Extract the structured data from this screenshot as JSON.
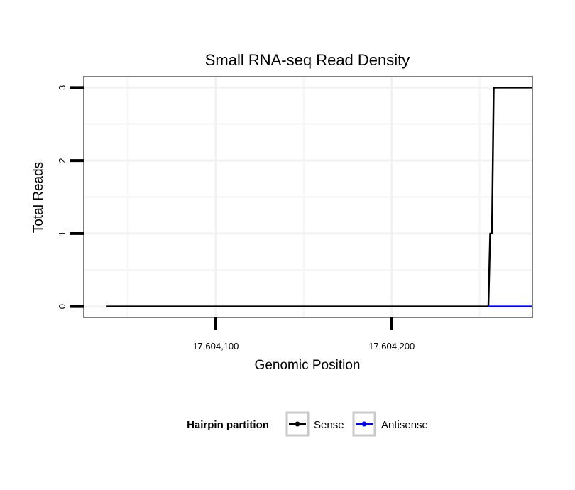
{
  "chart_data": {
    "type": "line",
    "title": "Small RNA-seq Read Density",
    "xlabel": "Genomic Position",
    "ylabel": "Total Reads",
    "xlim": [
      17604025,
      17604280
    ],
    "ylim": [
      -0.15,
      3.15
    ],
    "x_ticks": [
      {
        "value": 17604100,
        "label": "17,604,100"
      },
      {
        "value": 17604200,
        "label": "17,604,200"
      }
    ],
    "y_ticks": [
      {
        "value": 0,
        "label": "0"
      },
      {
        "value": 1,
        "label": "1"
      },
      {
        "value": 2,
        "label": "2"
      },
      {
        "value": 3,
        "label": "3"
      }
    ],
    "x_minor_grid": [
      17604050,
      17604150,
      17604250
    ],
    "y_minor_grid": [
      0.5,
      1.5,
      2.5
    ],
    "grid": true,
    "legend": {
      "title": "Hairpin partition",
      "position": "bottom"
    },
    "series": [
      {
        "name": "Sense",
        "color": "#000000",
        "x": [
          17604038,
          17604255,
          17604256,
          17604257,
          17604258,
          17604259,
          17604280
        ],
        "y": [
          0,
          0,
          1,
          1,
          3,
          3,
          3
        ]
      },
      {
        "name": "Antisense",
        "color": "#0000ff",
        "x": [
          17604255,
          17604280
        ],
        "y": [
          0,
          0
        ]
      }
    ]
  }
}
